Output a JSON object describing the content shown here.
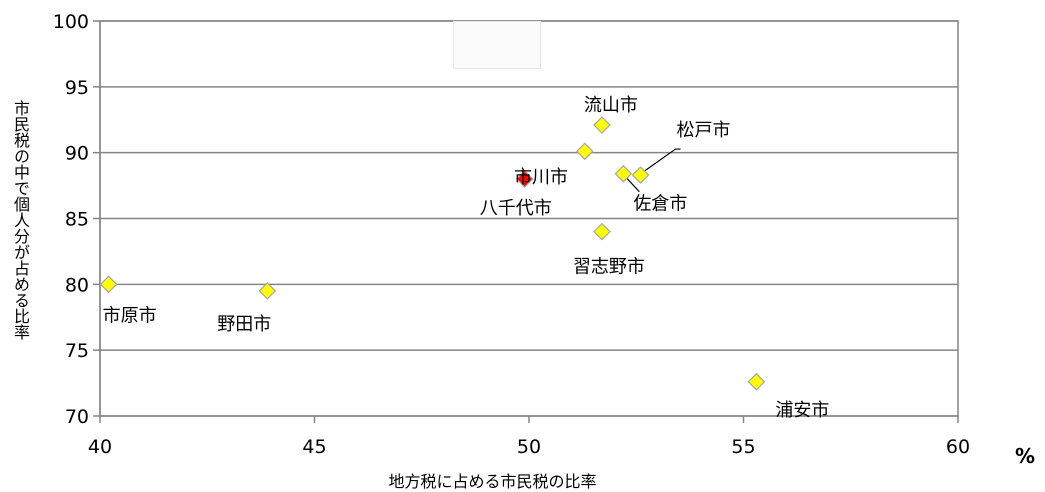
{
  "chart_data": {
    "type": "scatter",
    "title": "",
    "xlabel": "地方税に占める市民税の比率",
    "ylabel": "市民税の中で個人分が占める比率",
    "x_unit": "%",
    "xlim": [
      40,
      60
    ],
    "ylim": [
      70,
      100
    ],
    "x_ticks": [
      "40",
      "45",
      "50",
      "55",
      "60"
    ],
    "y_ticks": [
      "70",
      "75",
      "80",
      "85",
      "90",
      "95",
      "100"
    ],
    "grid": "horizontal",
    "points": [
      {
        "label": "市原市",
        "x": 40.2,
        "y": 80.0,
        "color": "#ffff00"
      },
      {
        "label": "野田市",
        "x": 43.9,
        "y": 79.5,
        "color": "#ffff00"
      },
      {
        "label": "八千代市",
        "x": 49.9,
        "y": 88.0,
        "color": "#ff0000"
      },
      {
        "label": "",
        "x": 51.3,
        "y": 90.1,
        "color": "#ffff00"
      },
      {
        "label": "流山市",
        "x": 51.7,
        "y": 92.1,
        "color": "#ffff00"
      },
      {
        "label": "習志野市",
        "x": 51.7,
        "y": 84.0,
        "color": "#ffff00"
      },
      {
        "label": "佐倉市",
        "x": 52.2,
        "y": 88.4,
        "color": "#ffff00"
      },
      {
        "label": "松戸市",
        "x": 52.6,
        "y": 88.3,
        "color": "#ffff00"
      },
      {
        "label": "浦安市",
        "x": 55.3,
        "y": 72.6,
        "color": "#ffff00"
      }
    ],
    "extra_labels": [
      {
        "label": "市川市"
      }
    ]
  }
}
